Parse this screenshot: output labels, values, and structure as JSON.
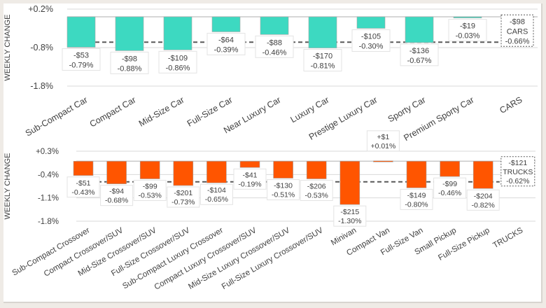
{
  "colors": {
    "cars_bar": "#3dd9c1",
    "trucks_bar": "#ff5500",
    "gridline": "#d9d9d9",
    "avg_line": "#595959",
    "text": "#404040"
  },
  "chart_data": [
    {
      "type": "bar",
      "title": "",
      "ylabel": "WEEKLY CHANGE",
      "xlabel": "",
      "ylim": [
        -1.8,
        0.2
      ],
      "yticks": [
        "+0.2%",
        "-0.8%",
        "-1.8%"
      ],
      "ytick_values": [
        0.2,
        -0.8,
        -1.8
      ],
      "grid": true,
      "categories": [
        "Sub-Compact Car",
        "Compact Car",
        "Mid-Size Car",
        "Full-Size Car",
        "Near Luxury Car",
        "Luxury Car",
        "Prestige Luxury Car",
        "Sporty Car",
        "Premium Sporty Car",
        "CARS"
      ],
      "series": [
        {
          "name": "Weekly % change",
          "values": [
            -0.79,
            -0.88,
            -0.86,
            -0.39,
            -0.46,
            -0.81,
            -0.3,
            -0.67,
            -0.03,
            null
          ],
          "dollar_labels": [
            "-$53",
            "-$98",
            "-$109",
            "-$64",
            "-$88",
            "-$170",
            "-$105",
            "-$136",
            "-$19",
            ""
          ],
          "pct_labels": [
            "-0.79%",
            "-0.88%",
            "-0.86%",
            "-0.39%",
            "-0.46%",
            "-0.81%",
            "-0.30%",
            "-0.67%",
            "-0.03%",
            ""
          ]
        }
      ],
      "segment_average": {
        "label": "CARS",
        "value": -0.66,
        "dollar_label": "-$98",
        "pct_label": "-0.66%"
      }
    },
    {
      "type": "bar",
      "title": "",
      "ylabel": "WEEKLY CHANGE",
      "xlabel": "",
      "ylim": [
        -1.8,
        0.3
      ],
      "yticks": [
        "+0.3%",
        "-0.4%",
        "-1.1%",
        "-1.8%"
      ],
      "ytick_values": [
        0.3,
        -0.4,
        -1.1,
        -1.8
      ],
      "grid": true,
      "categories": [
        "Sub-Compact Crossover",
        "Compact Crossover/SUV",
        "Mid-Size Crossover/SUV",
        "Full-Size Crossover/SUV",
        "Sub-Compact Luxury Crossover",
        "Compact Luxury Crossover/SUV",
        "Mid-Size Luxury Crossover/SUV",
        "Full-Size Luxury Crossover/SUV",
        "Minivan",
        "Compact Van",
        "Full-Size Van",
        "Small Pickup",
        "Full-Size Pickup",
        "TRUCKS"
      ],
      "series": [
        {
          "name": "Weekly % change",
          "values": [
            -0.43,
            -0.68,
            -0.53,
            -0.73,
            -0.65,
            -0.19,
            -0.51,
            -0.53,
            -1.3,
            0.01,
            -0.8,
            -0.46,
            -0.82,
            null
          ],
          "dollar_labels": [
            "-$51",
            "-$94",
            "-$99",
            "-$201",
            "-$104",
            "-$41",
            "-$130",
            "-$206",
            "-$215",
            "+$1",
            "-$149",
            "-$99",
            "-$204",
            ""
          ],
          "pct_labels": [
            "-0.43%",
            "-0.68%",
            "-0.53%",
            "-0.73%",
            "-0.65%",
            "-0.19%",
            "-0.51%",
            "-0.53%",
            "-1.30%",
            "+0.01%",
            "-0.80%",
            "-0.46%",
            "-0.82%",
            ""
          ]
        }
      ],
      "segment_average": {
        "label": "TRUCKS",
        "value": -0.62,
        "dollar_label": "-$121",
        "pct_label": "-0.62%"
      }
    }
  ]
}
